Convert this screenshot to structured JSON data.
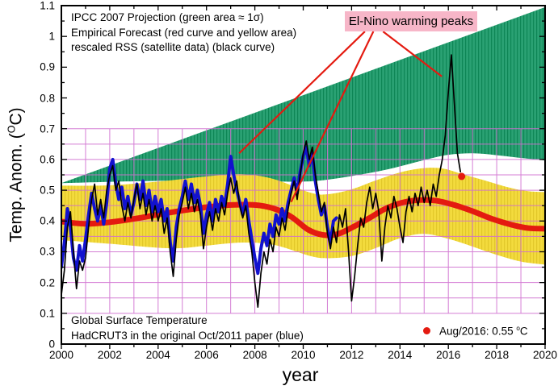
{
  "notes": {
    "line1": "IPCC 2007 Projection (green area ≈ 1σ)",
    "line2": "Empirical Forecast (red curve and yellow area)",
    "line3": "rescaled RSS (satellite data) (black curve)",
    "bottom1": "Global Surface Temperature",
    "bottom2": "HadCRUT3 in the original Oct/2011 paper (blue)"
  },
  "elnino": {
    "label": "El-Nino warming peaks",
    "pointer_lines": [
      [
        2012.55,
        1.016,
        2007.35,
        0.62
      ],
      [
        2012.9,
        1.016,
        2009.5,
        0.462
      ],
      [
        2013.3,
        1.016,
        2015.73,
        0.87
      ]
    ]
  },
  "legend": {
    "pre": "Aug/2016: 0.55 ",
    "sup": "o",
    "post": "C"
  },
  "labels": {
    "ylabel_pre": "Temp. Anom. (",
    "ylabel_sup": "O",
    "ylabel_post": "C)"
  },
  "colors": {
    "green": "#2aa173",
    "green_hatch": "#0e8656",
    "yellow": "#f3db3d",
    "yellow_hatch": "#e2c82a",
    "red": "#e41a10",
    "blue": "#1212cf",
    "black": "#000000",
    "grid": "#d06fd0",
    "elnino_bg": "#f7b6c8",
    "border": "#000000"
  },
  "chart_data": {
    "type": "line",
    "title": "",
    "xlabel": "year",
    "ylabel": "Temp. Anom. (°C)",
    "xlim": [
      2000,
      2020
    ],
    "ylim": [
      0,
      1.1
    ],
    "grid": {
      "x_min": 2001,
      "x_max": 2019,
      "x_step": 1,
      "y_min": 0.1,
      "y_max": 0.7,
      "y_step": 0.05,
      "horizontal_full_width": true
    },
    "x_ticks": {
      "major": [
        2000,
        2002,
        2004,
        2006,
        2008,
        2010,
        2012,
        2014,
        2016,
        2018,
        2020
      ],
      "labels": [
        "2000",
        "2002",
        "2004",
        "2006",
        "2008",
        "2010",
        "2012",
        "2014",
        "2016",
        "2018",
        "2020"
      ],
      "minor_step": 1
    },
    "y_ticks": {
      "major": [
        0,
        0.1,
        0.2,
        0.3,
        0.4,
        0.5,
        0.6,
        0.7,
        0.8,
        0.9,
        1,
        1.1
      ],
      "labels": [
        "0",
        "0.1",
        "0.2",
        "0.3",
        "0.4",
        "0.5",
        "0.6",
        "0.7",
        "0.8",
        "0.9",
        "1",
        "1.1"
      ],
      "minor_step": 0.05
    },
    "point_marker": {
      "name": "Aug/2016",
      "x": 2016.55,
      "y": 0.545,
      "r": 4.5,
      "color_key": "red"
    },
    "series": [
      {
        "name": "IPCC 2007 Projection (green area ≈ 1σ)",
        "kind": "band",
        "color_key": "green",
        "top": [
          [
            2000,
            0.523
          ],
          [
            2020,
            1.095
          ]
        ],
        "bottom": [
          [
            2000,
            0.523
          ],
          [
            2003,
            0.529
          ],
          [
            2006,
            0.532
          ],
          [
            2009,
            0.528
          ],
          [
            2010.5,
            0.53
          ],
          [
            2012,
            0.546
          ],
          [
            2013.5,
            0.568
          ],
          [
            2015,
            0.598
          ],
          [
            2016,
            0.615
          ],
          [
            2017,
            0.62
          ],
          [
            2018,
            0.614
          ],
          [
            2019,
            0.605
          ],
          [
            2020,
            0.597
          ]
        ]
      },
      {
        "name": "Empirical Forecast uncertainty (yellow area)",
        "kind": "band",
        "color_key": "yellow",
        "top": [
          [
            2000,
            0.515
          ],
          [
            2002,
            0.516
          ],
          [
            2004,
            0.528
          ],
          [
            2006,
            0.545
          ],
          [
            2007.5,
            0.552
          ],
          [
            2008.8,
            0.536
          ],
          [
            2010.3,
            0.492
          ],
          [
            2011,
            0.487
          ],
          [
            2012,
            0.503
          ],
          [
            2013,
            0.532
          ],
          [
            2014,
            0.558
          ],
          [
            2015,
            0.572
          ],
          [
            2015.8,
            0.57
          ],
          [
            2016.6,
            0.552
          ],
          [
            2017.5,
            0.532
          ],
          [
            2018.5,
            0.509
          ],
          [
            2019.3,
            0.497
          ],
          [
            2020,
            0.494
          ]
        ],
        "bottom": [
          [
            2000,
            0.338
          ],
          [
            2002,
            0.326
          ],
          [
            2004,
            0.313
          ],
          [
            2005,
            0.312
          ],
          [
            2006,
            0.32
          ],
          [
            2007.5,
            0.33
          ],
          [
            2008.8,
            0.322
          ],
          [
            2010.3,
            0.286
          ],
          [
            2011,
            0.279
          ],
          [
            2012,
            0.286
          ],
          [
            2013,
            0.312
          ],
          [
            2014,
            0.344
          ],
          [
            2015,
            0.358
          ],
          [
            2016,
            0.342
          ],
          [
            2017,
            0.317
          ],
          [
            2018,
            0.29
          ],
          [
            2019,
            0.268
          ],
          [
            2020,
            0.258
          ]
        ]
      },
      {
        "name": "Empirical Forecast (red curve)",
        "kind": "smooth-line",
        "color_key": "red",
        "width": 7,
        "points": [
          [
            2000,
            0.398
          ],
          [
            2001,
            0.391
          ],
          [
            2002,
            0.396
          ],
          [
            2003,
            0.407
          ],
          [
            2004,
            0.421
          ],
          [
            2005,
            0.434
          ],
          [
            2006,
            0.445
          ],
          [
            2007,
            0.452
          ],
          [
            2008,
            0.452
          ],
          [
            2008.8,
            0.44
          ],
          [
            2009.5,
            0.414
          ],
          [
            2010.2,
            0.372
          ],
          [
            2010.8,
            0.355
          ],
          [
            2011.4,
            0.357
          ],
          [
            2012,
            0.378
          ],
          [
            2012.7,
            0.408
          ],
          [
            2013.4,
            0.44
          ],
          [
            2014.1,
            0.46
          ],
          [
            2014.8,
            0.468
          ],
          [
            2015.5,
            0.466
          ],
          [
            2016.2,
            0.453
          ],
          [
            2017,
            0.432
          ],
          [
            2017.8,
            0.407
          ],
          [
            2018.6,
            0.388
          ],
          [
            2019.3,
            0.377
          ],
          [
            2020,
            0.375
          ]
        ]
      },
      {
        "name": "HadCRUT3 (blue curve)",
        "kind": "line",
        "color_key": "blue",
        "width": 4,
        "t0": 2000,
        "dt": 0.125,
        "values": [
          0.25,
          0.33,
          0.44,
          0.38,
          0.28,
          0.24,
          0.32,
          0.27,
          0.34,
          0.42,
          0.49,
          0.44,
          0.4,
          0.45,
          0.39,
          0.46,
          0.57,
          0.6,
          0.52,
          0.47,
          0.51,
          0.44,
          0.48,
          0.42,
          0.46,
          0.52,
          0.47,
          0.53,
          0.45,
          0.5,
          0.43,
          0.48,
          0.43,
          0.47,
          0.4,
          0.44,
          0.33,
          0.27,
          0.38,
          0.44,
          0.48,
          0.53,
          0.47,
          0.52,
          0.46,
          0.5,
          0.45,
          0.36,
          0.42,
          0.46,
          0.4,
          0.47,
          0.43,
          0.48,
          0.45,
          0.52,
          0.61,
          0.55,
          0.5,
          0.46,
          0.42,
          0.47,
          0.4,
          0.34,
          0.28,
          0.23,
          0.31,
          0.36,
          0.32,
          0.39,
          0.35,
          0.42,
          0.39,
          0.44,
          0.4,
          0.46,
          0.5,
          0.54,
          0.49,
          0.56,
          0.61,
          0.64,
          0.58,
          0.62,
          0.53,
          0.47,
          0.42,
          0.45,
          0.38,
          0.33,
          0.4,
          0.41
        ]
      },
      {
        "name": "rescaled RSS satellite (black curve)",
        "kind": "line",
        "color_key": "black",
        "width": 1.7,
        "t0": 2000,
        "dt": 0.125,
        "values": [
          0.16,
          0.24,
          0.38,
          0.43,
          0.3,
          0.18,
          0.27,
          0.24,
          0.28,
          0.38,
          0.47,
          0.52,
          0.42,
          0.47,
          0.41,
          0.5,
          0.55,
          0.58,
          0.5,
          0.53,
          0.45,
          0.4,
          0.46,
          0.41,
          0.47,
          0.52,
          0.44,
          0.49,
          0.42,
          0.47,
          0.4,
          0.45,
          0.4,
          0.44,
          0.36,
          0.41,
          0.3,
          0.22,
          0.34,
          0.42,
          0.46,
          0.51,
          0.44,
          0.49,
          0.43,
          0.47,
          0.42,
          0.31,
          0.38,
          0.43,
          0.37,
          0.44,
          0.4,
          0.46,
          0.42,
          0.49,
          0.54,
          0.49,
          0.53,
          0.45,
          0.41,
          0.45,
          0.36,
          0.3,
          0.2,
          0.12,
          0.23,
          0.3,
          0.26,
          0.34,
          0.3,
          0.38,
          0.35,
          0.41,
          0.37,
          0.44,
          0.49,
          0.53,
          0.47,
          0.55,
          0.62,
          0.66,
          0.6,
          0.64,
          0.55,
          0.49,
          0.43,
          0.46,
          0.36,
          0.31,
          0.38,
          0.33,
          0.42,
          0.38,
          0.44,
          0.3,
          0.14,
          0.22,
          0.32,
          0.41,
          0.38,
          0.46,
          0.51,
          0.44,
          0.49,
          0.43,
          0.27,
          0.38,
          0.45,
          0.41,
          0.48,
          0.44,
          0.38,
          0.33,
          0.43,
          0.48,
          0.43,
          0.49,
          0.45,
          0.51,
          0.46,
          0.5,
          0.45,
          0.52,
          0.48,
          0.55,
          0.6,
          0.68,
          0.82,
          0.94,
          0.78,
          0.62,
          0.56
        ]
      }
    ]
  }
}
